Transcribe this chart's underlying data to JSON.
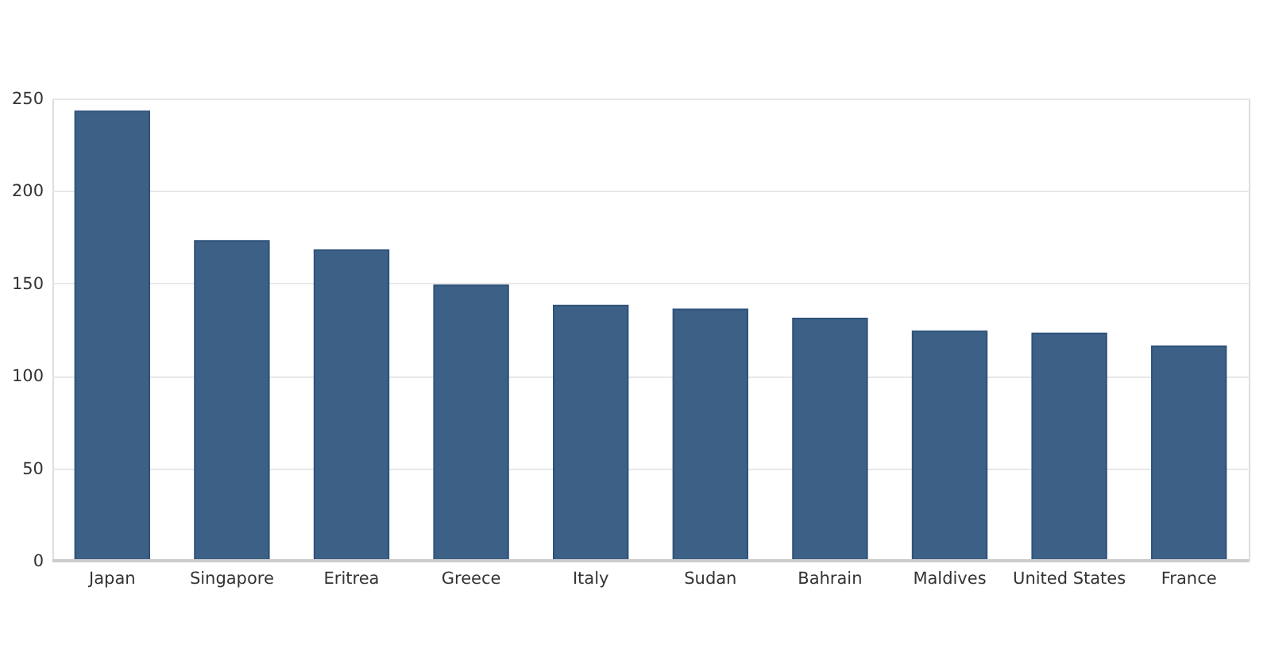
{
  "chart_data": {
    "type": "bar",
    "categories": [
      "Japan",
      "Singapore",
      "Eritrea",
      "Greece",
      "Italy",
      "Sudan",
      "Bahrain",
      "Maldives",
      "United States",
      "France"
    ],
    "values": [
      243,
      173,
      168,
      149,
      138,
      136,
      131,
      124,
      123,
      116
    ],
    "color": "#3d6186",
    "ylim": [
      0,
      250
    ],
    "yticks": [
      0,
      50,
      100,
      150,
      200,
      250
    ],
    "grid": "y"
  }
}
